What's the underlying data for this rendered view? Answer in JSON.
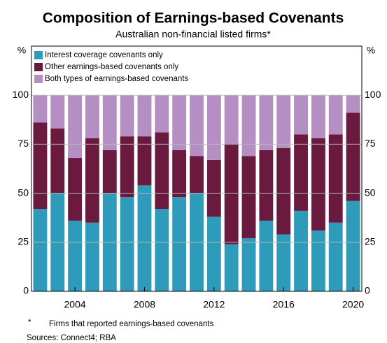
{
  "chart_data": {
    "type": "stacked_bar",
    "title": "Composition of Earnings-based Covenants",
    "subtitle": "Australian non-financial listed firms*",
    "y_unit": "%",
    "categories": [
      null,
      null,
      "2004",
      null,
      null,
      null,
      "2008",
      null,
      null,
      null,
      "2012",
      null,
      null,
      null,
      "2016",
      null,
      null,
      null,
      "2020"
    ],
    "series": [
      {
        "name": "Interest coverage covenants only",
        "color": "#2e9bbb",
        "values": [
          42,
          50,
          36,
          35,
          50,
          48,
          54,
          42,
          48,
          50,
          38,
          24,
          27,
          36,
          29,
          41,
          31,
          35,
          46
        ]
      },
      {
        "name": "Other earnings-based covenants only",
        "color": "#6a1a3e",
        "values": [
          44,
          33,
          32,
          43,
          22,
          31,
          25,
          39,
          24,
          19,
          29,
          51,
          42,
          36,
          44,
          39,
          47,
          45,
          45
        ]
      },
      {
        "name": "Both types of earnings-based covenants",
        "color": "#b58fc4",
        "values": [
          14,
          17,
          32,
          22,
          28,
          21,
          21,
          19,
          28,
          31,
          33,
          25,
          31,
          28,
          27,
          20,
          22,
          20,
          9
        ]
      }
    ],
    "ylim": [
      0,
      125
    ],
    "yticks": [
      0,
      25,
      50,
      75,
      100
    ],
    "grid": true,
    "legend": "top-left",
    "footnote_marker": "*",
    "footnote": "Firms that reported earnings-based covenants",
    "sources": "Sources: Connect4; RBA"
  }
}
